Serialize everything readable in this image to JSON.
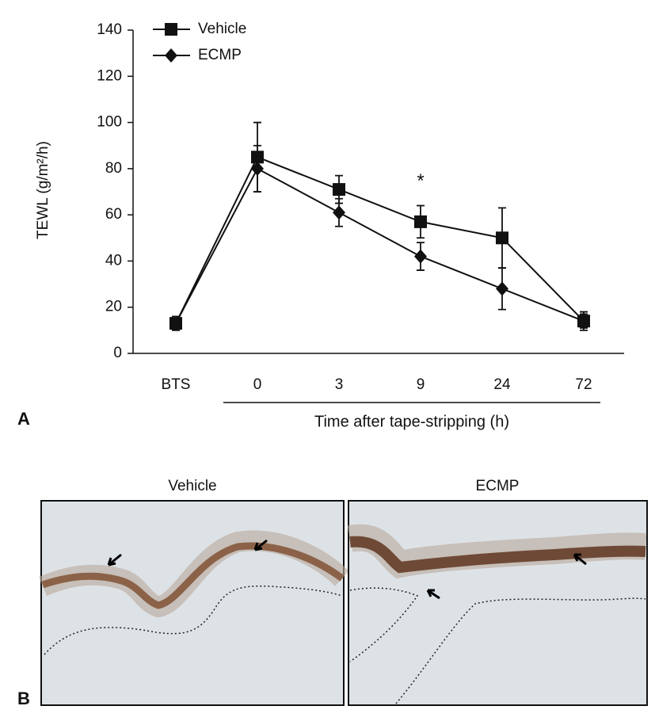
{
  "chart_data": {
    "type": "line",
    "panel_label": "A",
    "y_label": "TEWL (g/m²/h)",
    "x_label": "Time after tape-stripping (h)",
    "categories": [
      "BTS",
      "0",
      "3",
      "9",
      "24",
      "72"
    ],
    "series": [
      {
        "name": "Vehicle",
        "color": "#111111",
        "marker": "square",
        "values": [
          13,
          85,
          71,
          57,
          50,
          14
        ],
        "errors": [
          2,
          15,
          6,
          7,
          13,
          4
        ]
      },
      {
        "name": "ECMP",
        "color": "#111111",
        "marker": "diamond",
        "values": [
          13,
          80,
          61,
          42,
          28,
          14
        ],
        "errors": [
          3,
          10,
          6,
          6,
          9,
          3
        ]
      }
    ],
    "ylim": [
      0,
      140
    ],
    "yticks": [
      0,
      20,
      40,
      60,
      80,
      100,
      120,
      140
    ],
    "annotations": [
      {
        "text": "*",
        "category": "9"
      }
    ]
  },
  "panel_b": {
    "label": "B",
    "images": [
      {
        "title": "Vehicle"
      },
      {
        "title": "ECMP"
      }
    ]
  }
}
